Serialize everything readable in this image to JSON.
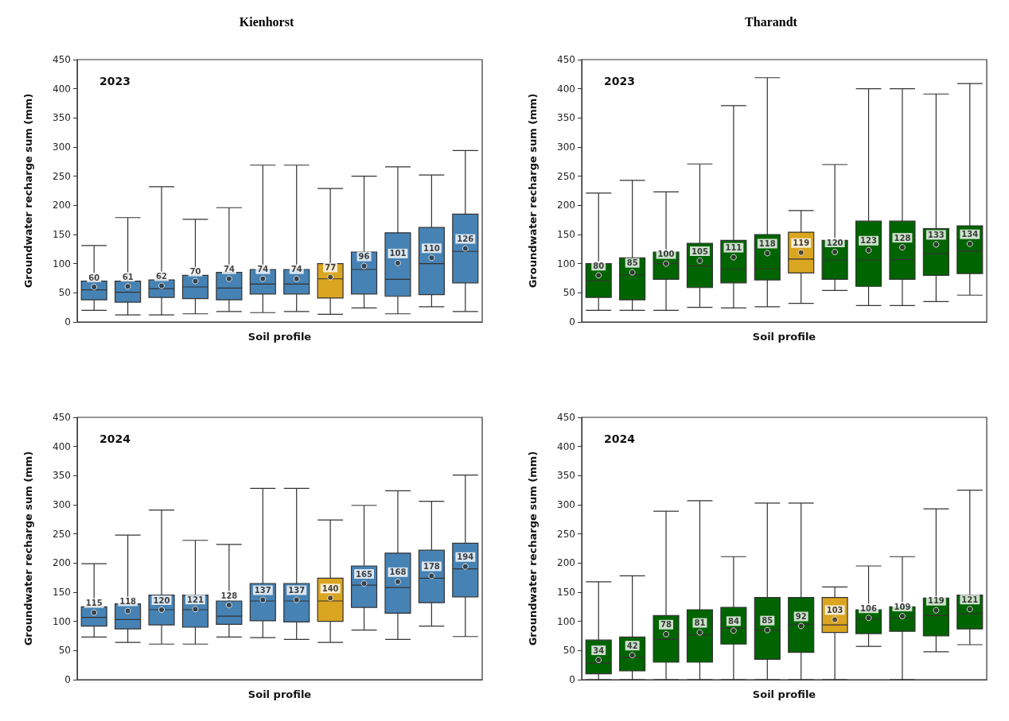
{
  "chart_data": [
    {
      "type": "box",
      "title": "Kienhorst",
      "xlabel": "Soil profile",
      "ylabel": "Groundwater recharge sum (mm)",
      "annotations": [
        "2023"
      ],
      "categories": [
        null,
        null,
        null,
        null,
        null,
        null,
        null,
        null,
        null,
        null,
        null,
        null
      ],
      "ylim": [
        0,
        450
      ],
      "yticks": [
        0,
        50,
        100,
        150,
        200,
        250,
        300,
        350,
        400,
        450
      ],
      "tick_labels": "y",
      "data_labels": true,
      "colors": [
        "#4682b4",
        "#4682b4",
        "#4682b4",
        "#4682b4",
        "#4682b4",
        "#4682b4",
        "#4682b4",
        "#daa520",
        "#4682b4",
        "#4682b4",
        "#4682b4",
        "#4682b4"
      ],
      "boxes": [
        {
          "low": 20,
          "q1": 38,
          "median": 55,
          "q3": 70,
          "high": 131
        },
        {
          "low": 12,
          "q1": 34,
          "median": 51,
          "q3": 70,
          "high": 179
        },
        {
          "low": 12,
          "q1": 42,
          "median": 57,
          "q3": 72,
          "high": 232
        },
        {
          "low": 14,
          "q1": 40,
          "median": 60,
          "q3": 80,
          "high": 176
        },
        {
          "low": 18,
          "q1": 38,
          "median": 58,
          "q3": 85,
          "high": 196
        },
        {
          "low": 16,
          "q1": 48,
          "median": 65,
          "q3": 90,
          "high": 269
        },
        {
          "low": 18,
          "q1": 48,
          "median": 65,
          "q3": 90,
          "high": 269
        },
        {
          "low": 13,
          "q1": 41,
          "median": 74,
          "q3": 100,
          "high": 229
        },
        {
          "low": 24,
          "q1": 48,
          "median": 90,
          "q3": 120,
          "high": 250
        },
        {
          "low": 14,
          "q1": 44,
          "median": 73,
          "q3": 153,
          "high": 266
        },
        {
          "low": 26,
          "q1": 47,
          "median": 100,
          "q3": 162,
          "high": 252
        },
        {
          "low": 18,
          "q1": 67,
          "median": 121,
          "q3": 185,
          "high": 294
        }
      ],
      "series": [
        {
          "type": "scatter",
          "color": "#333333",
          "values": [
            60,
            61,
            62,
            70,
            74,
            74,
            74,
            77,
            96,
            101,
            110,
            126
          ]
        }
      ]
    },
    {
      "type": "box",
      "title": "Tharandt",
      "xlabel": "Soil profile",
      "ylabel": "Groundwater recharge sum (mm)",
      "annotations": [
        "2023"
      ],
      "categories": [
        null,
        null,
        null,
        null,
        null,
        null,
        null,
        null,
        null,
        null,
        null,
        null
      ],
      "ylim": [
        0,
        450
      ],
      "yticks": [
        0,
        50,
        100,
        150,
        200,
        250,
        300,
        350,
        400,
        450
      ],
      "tick_labels": "y",
      "data_labels": true,
      "colors": [
        "#006400",
        "#006400",
        "#006400",
        "#006400",
        "#006400",
        "#006400",
        "#daa520",
        "#006400",
        "#006400",
        "#006400",
        "#006400",
        "#006400"
      ],
      "boxes": [
        {
          "low": 20,
          "q1": 42,
          "median": 71,
          "q3": 100,
          "high": 221
        },
        {
          "low": 20,
          "q1": 38,
          "median": 81,
          "q3": 110,
          "high": 243
        },
        {
          "low": 20,
          "q1": 73,
          "median": 100,
          "q3": 120,
          "high": 223
        },
        {
          "low": 25,
          "q1": 59,
          "median": 96,
          "q3": 135,
          "high": 271
        },
        {
          "low": 24,
          "q1": 67,
          "median": 90,
          "q3": 140,
          "high": 371
        },
        {
          "low": 26,
          "q1": 72,
          "median": 91,
          "q3": 150,
          "high": 419
        },
        {
          "low": 32,
          "q1": 84,
          "median": 108,
          "q3": 154,
          "high": 191
        },
        {
          "low": 54,
          "q1": 73,
          "median": 106,
          "q3": 140,
          "high": 270
        },
        {
          "low": 28,
          "q1": 61,
          "median": 106,
          "q3": 173,
          "high": 400
        },
        {
          "low": 28,
          "q1": 73,
          "median": 107,
          "q3": 173,
          "high": 400
        },
        {
          "low": 35,
          "q1": 80,
          "median": 117,
          "q3": 160,
          "high": 391
        },
        {
          "low": 46,
          "q1": 83,
          "median": 122,
          "q3": 165,
          "high": 409
        }
      ],
      "series": [
        {
          "type": "scatter",
          "color": "#333333",
          "values": [
            80,
            85,
            100,
            105,
            111,
            118,
            119,
            120,
            123,
            128,
            133,
            134
          ]
        }
      ]
    },
    {
      "type": "box",
      "xlabel": "Soil profile",
      "ylabel": "Groundwater recharge sum (mm)",
      "annotations": [
        "2024"
      ],
      "categories": [
        null,
        null,
        null,
        null,
        null,
        null,
        null,
        null,
        null,
        null,
        null,
        null
      ],
      "ylim": [
        0,
        450
      ],
      "yticks": [
        0,
        50,
        100,
        150,
        200,
        250,
        300,
        350,
        400,
        450
      ],
      "tick_labels": "y",
      "data_labels": true,
      "colors": [
        "#4682b4",
        "#4682b4",
        "#4682b4",
        "#4682b4",
        "#4682b4",
        "#4682b4",
        "#4682b4",
        "#daa520",
        "#4682b4",
        "#4682b4",
        "#4682b4",
        "#4682b4"
      ],
      "boxes": [
        {
          "low": 73,
          "q1": 92,
          "median": 107,
          "q3": 125,
          "high": 199
        },
        {
          "low": 64,
          "q1": 87,
          "median": 103,
          "q3": 130,
          "high": 248
        },
        {
          "low": 61,
          "q1": 94,
          "median": 120,
          "q3": 145,
          "high": 291
        },
        {
          "low": 61,
          "q1": 90,
          "median": 120,
          "q3": 145,
          "high": 239
        },
        {
          "low": 73,
          "q1": 95,
          "median": 109,
          "q3": 135,
          "high": 232
        },
        {
          "low": 72,
          "q1": 101,
          "median": 135,
          "q3": 165,
          "high": 328
        },
        {
          "low": 69,
          "q1": 99,
          "median": 135,
          "q3": 165,
          "high": 328
        },
        {
          "low": 64,
          "q1": 100,
          "median": 135,
          "q3": 174,
          "high": 274
        },
        {
          "low": 85,
          "q1": 124,
          "median": 162,
          "q3": 195,
          "high": 299
        },
        {
          "low": 69,
          "q1": 114,
          "median": 158,
          "q3": 217,
          "high": 324
        },
        {
          "low": 92,
          "q1": 132,
          "median": 174,
          "q3": 222,
          "high": 306
        },
        {
          "low": 74,
          "q1": 142,
          "median": 190,
          "q3": 234,
          "high": 351
        }
      ],
      "series": [
        {
          "type": "scatter",
          "color": "#333333",
          "values": [
            115,
            118,
            120,
            121,
            128,
            137,
            137,
            140,
            165,
            168,
            178,
            194
          ]
        }
      ]
    },
    {
      "type": "box",
      "xlabel": "Soil profile",
      "ylabel": "Groundwater recharge sum (mm)",
      "annotations": [
        "2024"
      ],
      "categories": [
        null,
        null,
        null,
        null,
        null,
        null,
        null,
        null,
        null,
        null,
        null,
        null
      ],
      "ylim": [
        0,
        450
      ],
      "yticks": [
        0,
        50,
        100,
        150,
        200,
        250,
        300,
        350,
        400,
        450
      ],
      "tick_labels": "y",
      "data_labels": true,
      "colors": [
        "#006400",
        "#006400",
        "#006400",
        "#006400",
        "#006400",
        "#006400",
        "#006400",
        "#daa520",
        "#006400",
        "#006400",
        "#006400",
        "#006400"
      ],
      "boxes": [
        {
          "low": 0,
          "q1": 10,
          "median": 28,
          "q3": 68,
          "high": 168
        },
        {
          "low": 0,
          "q1": 15,
          "median": 38,
          "q3": 73,
          "high": 178
        },
        {
          "low": 0,
          "q1": 30,
          "median": 69,
          "q3": 110,
          "high": 289
        },
        {
          "low": 0,
          "q1": 30,
          "median": 77,
          "q3": 120,
          "high": 307
        },
        {
          "low": 0,
          "q1": 61,
          "median": 88,
          "q3": 124,
          "high": 211
        },
        {
          "low": 0,
          "q1": 35,
          "median": 85,
          "q3": 141,
          "high": 303
        },
        {
          "low": 0,
          "q1": 47,
          "median": 95,
          "q3": 141,
          "high": 303
        },
        {
          "low": 0,
          "q1": 81,
          "median": 94,
          "q3": 141,
          "high": 159
        },
        {
          "low": 57,
          "q1": 79,
          "median": 104,
          "q3": 120,
          "high": 195
        },
        {
          "low": 0,
          "q1": 83,
          "median": 106,
          "q3": 125,
          "high": 211
        },
        {
          "low": 48,
          "q1": 75,
          "median": 110,
          "q3": 140,
          "high": 293
        },
        {
          "low": 60,
          "q1": 87,
          "median": 113,
          "q3": 145,
          "high": 325
        }
      ],
      "series": [
        {
          "type": "scatter",
          "color": "#333333",
          "values": [
            34,
            42,
            78,
            81,
            84,
            85,
            92,
            103,
            106,
            109,
            119,
            121
          ]
        }
      ]
    }
  ]
}
